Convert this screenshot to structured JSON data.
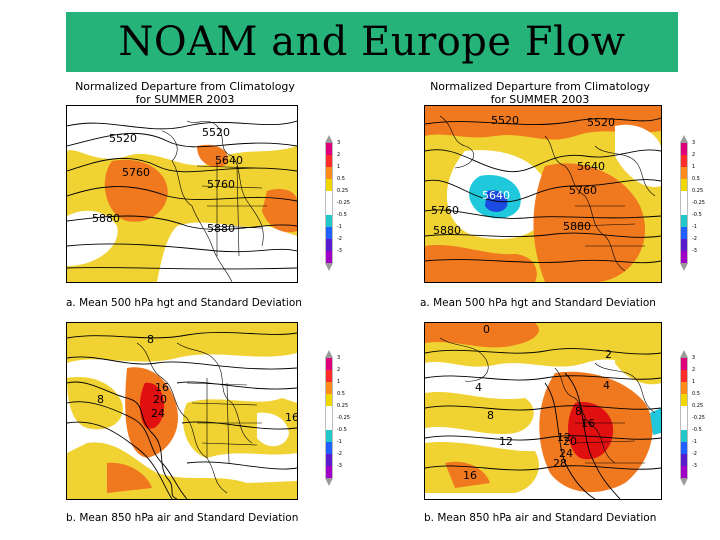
{
  "title": "NOAM and Europe Flow",
  "panels": [
    {
      "header_line1": "Normalized Departure from Climatology",
      "header_line2": "for SUMMER 2003",
      "caption": "a. Mean 500  hPa hgt and Standard Deviation",
      "contour_labels": [
        "5520",
        "5520",
        "5640",
        "5760",
        "5760",
        "5880",
        "5880"
      ]
    },
    {
      "header_line1": "Normalized Departure from Climatology",
      "header_line2": "for SUMMER 2003",
      "caption": "a. Mean 500  hPa hgt and Standard Deviation",
      "contour_labels": [
        "5520",
        "5520",
        "5640",
        "5640",
        "5760",
        "5760",
        "5880",
        "5880"
      ]
    },
    {
      "caption": "b. Mean 850 hPa air and Standard Deviation",
      "contour_labels": [
        "8",
        "8",
        "16",
        "20",
        "24",
        "16"
      ]
    },
    {
      "caption": "b. Mean 850 hPa air and Standard Deviation",
      "contour_labels": [
        "0",
        "2",
        "4",
        "4",
        "8",
        "8",
        "12",
        "16",
        "12",
        "20",
        "24",
        "28",
        "16"
      ]
    }
  ],
  "colorbar": {
    "colors": [
      "#e0007a",
      "#ff2a2a",
      "#ff8c1a",
      "#f0d800",
      "#ffffff",
      "#ffffff",
      "#20c8c8",
      "#2060ff",
      "#5a1ad0",
      "#a000c8"
    ],
    "ticks_upper": [
      "3",
      "2",
      "1",
      "0.5",
      "0.25",
      "-0.25"
    ],
    "ticks_lower": [
      "-0.5",
      "-1",
      "-2",
      "-3"
    ]
  },
  "colors": {
    "title_bar": "#26b37a",
    "orange": "#f0781e",
    "yellow": "#f0d232",
    "red": "#e01010",
    "cyan": "#20c8dc",
    "blue": "#1a4ae0",
    "coast": "#000000"
  }
}
